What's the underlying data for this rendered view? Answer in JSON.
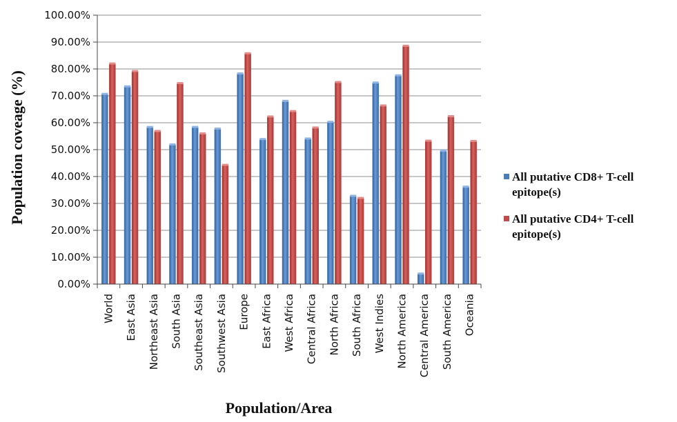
{
  "chart_data": {
    "type": "bar",
    "title": "",
    "xlabel": "Population/Area",
    "ylabel": "Population coveage (%)",
    "ylim": [
      0,
      100
    ],
    "yticks": [
      "0.00%",
      "10.00%",
      "20.00%",
      "30.00%",
      "40.00%",
      "50.00%",
      "60.00%",
      "70.00%",
      "80.00%",
      "90.00%",
      "100.00%"
    ],
    "grid": true,
    "legend_position": "right",
    "categories": [
      "World",
      "East Asia",
      "Northeast Asia",
      "South Asia",
      "Southeast Asia",
      "Southwest Asia",
      "Europe",
      "East Africa",
      "West Africa",
      "Central Africa",
      "North Africa",
      "South Africa",
      "West Indies",
      "North America",
      "Central America",
      "South America",
      "Oceania"
    ],
    "series": [
      {
        "name": "All putative CD8+ T-cell epitope(s)",
        "legend_lines": [
          "All putative CD8+ T-cell",
          "epitope(s)"
        ],
        "color": "#4a7ebb",
        "values": [
          70.6,
          73.4,
          58.3,
          51.8,
          58.3,
          57.7,
          78.2,
          53.8,
          68.0,
          54.0,
          60.2,
          32.7,
          74.8,
          77.5,
          3.8,
          49.5,
          36.1
        ]
      },
      {
        "name": "All putative CD4+ T-cell epitope(s)",
        "legend_lines": [
          "All putative CD4+ T-cell",
          "epitope(s)"
        ],
        "color": "#be4b48",
        "values": [
          81.9,
          79.1,
          56.8,
          74.6,
          55.9,
          44.2,
          85.7,
          62.2,
          64.2,
          58.1,
          75.0,
          31.9,
          66.3,
          88.5,
          53.2,
          62.3,
          53.1
        ]
      }
    ]
  }
}
